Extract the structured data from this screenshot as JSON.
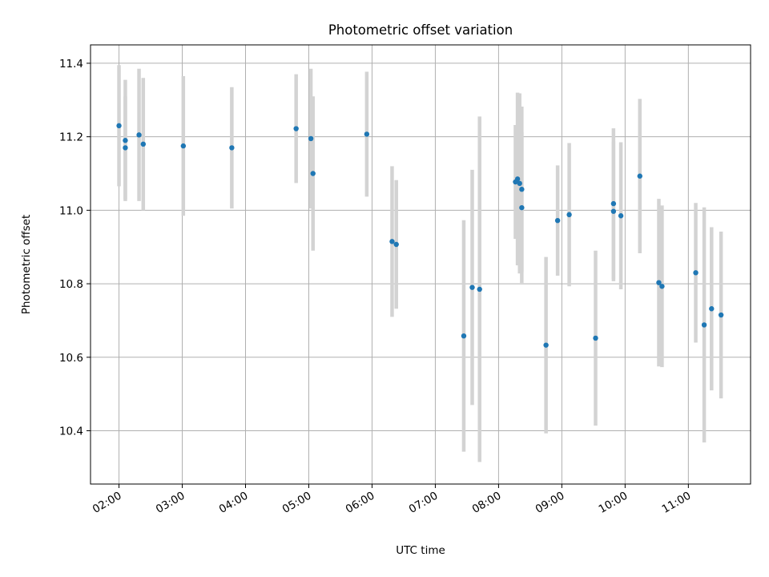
{
  "chart_data": {
    "type": "scatter",
    "title": "Photometric offset variation",
    "xlabel": "UTC time",
    "ylabel": "Photometric offset",
    "xlim": [
      "01:33",
      "11:59"
    ],
    "ylim": [
      10.255,
      11.45
    ],
    "grid": true,
    "xticks": [
      "02:00",
      "03:00",
      "04:00",
      "05:00",
      "06:00",
      "07:00",
      "08:00",
      "09:00",
      "10:00",
      "11:00"
    ],
    "yticks": [
      "10.4",
      "10.6",
      "10.8",
      "11.0",
      "11.2",
      "11.4"
    ],
    "point_color": "#1f77b4",
    "errorbar_color": "#d3d3d3",
    "points": [
      {
        "x": "02:00",
        "y": 11.23,
        "err": 0.165
      },
      {
        "x": "02:06",
        "y": 11.17,
        "err": 0.14
      },
      {
        "x": "02:06",
        "y": 11.19,
        "err": 0.165
      },
      {
        "x": "02:19",
        "y": 11.205,
        "err": 0.18
      },
      {
        "x": "02:23",
        "y": 11.18,
        "err": 0.18
      },
      {
        "x": "03:01",
        "y": 11.175,
        "err": 0.19
      },
      {
        "x": "03:47",
        "y": 11.17,
        "err": 0.165
      },
      {
        "x": "04:48",
        "y": 11.222,
        "err": 0.148
      },
      {
        "x": "05:02",
        "y": 11.195,
        "err": 0.19
      },
      {
        "x": "05:04",
        "y": 11.1,
        "err": 0.21
      },
      {
        "x": "05:55",
        "y": 11.207,
        "err": 0.17
      },
      {
        "x": "06:19",
        "y": 10.915,
        "err": 0.205
      },
      {
        "x": "06:23",
        "y": 10.907,
        "err": 0.175
      },
      {
        "x": "07:27",
        "y": 10.658,
        "err": 0.315
      },
      {
        "x": "07:35",
        "y": 10.79,
        "err": 0.32
      },
      {
        "x": "07:42",
        "y": 10.785,
        "err": 0.47
      },
      {
        "x": "08:16",
        "y": 11.077,
        "err": 0.155
      },
      {
        "x": "08:18",
        "y": 11.085,
        "err": 0.235
      },
      {
        "x": "08:20",
        "y": 11.073,
        "err": 0.245
      },
      {
        "x": "08:22",
        "y": 11.057,
        "err": 0.225
      },
      {
        "x": "08:22",
        "y": 11.007,
        "err": 0.205
      },
      {
        "x": "08:45",
        "y": 10.633,
        "err": 0.24
      },
      {
        "x": "08:56",
        "y": 10.972,
        "err": 0.15
      },
      {
        "x": "09:07",
        "y": 10.988,
        "err": 0.195
      },
      {
        "x": "09:32",
        "y": 10.652,
        "err": 0.238
      },
      {
        "x": "09:49",
        "y": 10.997,
        "err": 0.19
      },
      {
        "x": "09:49",
        "y": 11.018,
        "err": 0.205
      },
      {
        "x": "09:56",
        "y": 10.985,
        "err": 0.2
      },
      {
        "x": "10:14",
        "y": 11.093,
        "err": 0.21
      },
      {
        "x": "10:32",
        "y": 10.803,
        "err": 0.228
      },
      {
        "x": "10:35",
        "y": 10.793,
        "err": 0.22
      },
      {
        "x": "11:07",
        "y": 10.83,
        "err": 0.19
      },
      {
        "x": "11:15",
        "y": 10.688,
        "err": 0.32
      },
      {
        "x": "11:22",
        "y": 10.732,
        "err": 0.222
      },
      {
        "x": "11:31",
        "y": 10.715,
        "err": 0.227
      }
    ]
  }
}
